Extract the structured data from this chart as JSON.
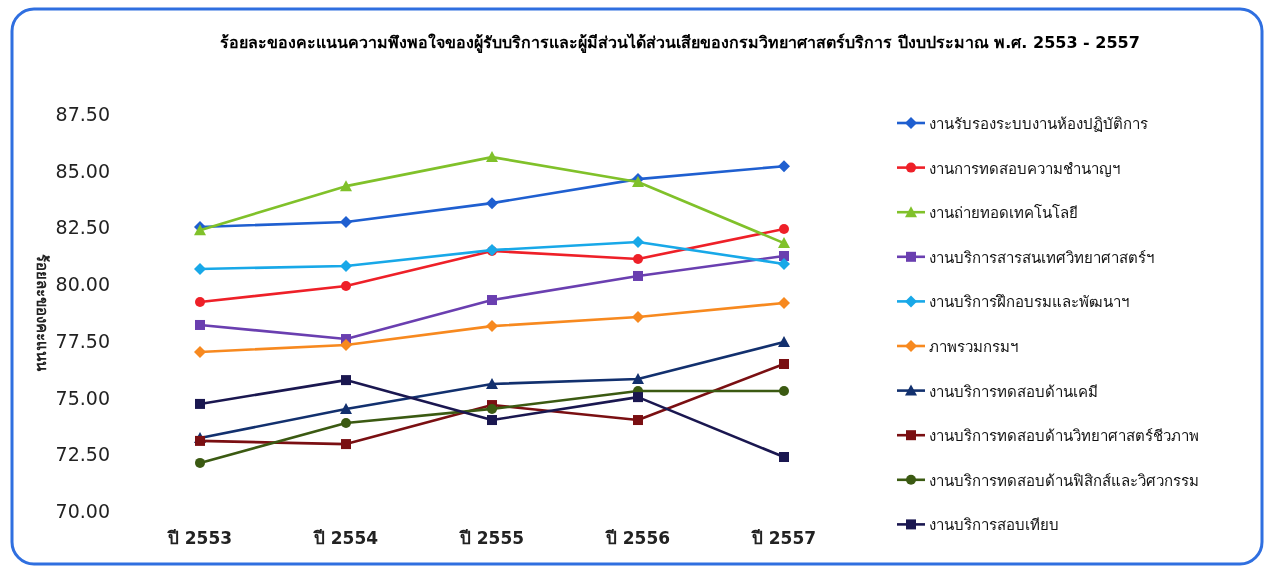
{
  "chart_data": {
    "type": "line",
    "title": "ร้อยละของคะแนนความพึงพอใจของผู้รับบริการและผู้มีส่วนได้ส่วนเสียของกรมวิทยาศาสตร์บริการ ปีงบประมาณ พ.ศ. 2553 - 2557",
    "ylabel": "ร้อยละของคะแนน",
    "categories": [
      "ปี 2553",
      "ปี 2554",
      "ปี 2555",
      "ปี 2556",
      "ปี 2557"
    ],
    "ylim": [
      70,
      87.5
    ],
    "yticks": [
      {
        "value": 70,
        "label": "70.00"
      },
      {
        "value": 72.5,
        "label": "72.50"
      },
      {
        "value": 75,
        "label": "75.00"
      },
      {
        "value": 77.5,
        "label": "77.50"
      },
      {
        "value": 80,
        "label": "80.00"
      },
      {
        "value": 82.5,
        "label": "82.50"
      },
      {
        "value": 85,
        "label": "85.00"
      },
      {
        "value": 87.5,
        "label": "87.50"
      }
    ],
    "grid": false,
    "legend": "right",
    "line_style": "solid",
    "series": [
      {
        "name": "งานรับรองระบบงานห้องปฏิบัติการ",
        "color": "#1f5fd0",
        "marker": "diamond",
        "values": [
          82.52,
          82.74,
          83.57,
          84.63,
          85.2
        ]
      },
      {
        "name": "งานการทดสอบความชำนาญฯ",
        "color": "#ee2028",
        "marker": "circle",
        "values": [
          79.21,
          79.92,
          81.46,
          81.11,
          82.43
        ]
      },
      {
        "name": "งานถ่ายทอดเทคโนโลยี",
        "color": "#80c12a",
        "marker": "triangle",
        "values": [
          82.38,
          84.32,
          85.6,
          84.5,
          81.81
        ]
      },
      {
        "name": "งานบริการสารสนเทศวิทยาศาสตร์ฯ",
        "color": "#6a3fb0",
        "marker": "square",
        "values": [
          78.2,
          77.58,
          79.3,
          80.36,
          81.24
        ]
      },
      {
        "name": "งานบริการฝึกอบรมและพัฒนาฯ",
        "color": "#18a8e8",
        "marker": "diamond",
        "values": [
          80.67,
          80.8,
          81.5,
          81.86,
          80.89
        ]
      },
      {
        "name": "ภาพรวมกรมฯ",
        "color": "#f7891f",
        "marker": "diamond",
        "values": [
          77.01,
          77.32,
          78.15,
          78.55,
          79.17
        ]
      },
      {
        "name": "งานบริการทดสอบด้านเคมี",
        "color": "#12306e",
        "marker": "triangle",
        "values": [
          73.22,
          74.5,
          75.6,
          75.82,
          77.45
        ]
      },
      {
        "name": "งานบริการทดสอบด้านวิทยาศาสตร์ชีวภาพ",
        "color": "#7a0f12",
        "marker": "square",
        "values": [
          73.09,
          72.95,
          74.67,
          74.01,
          76.48
        ]
      },
      {
        "name": "งานบริการทดสอบด้านฟิสิกส์และวิศวกรรม",
        "color": "#3b5a12",
        "marker": "circle",
        "values": [
          72.12,
          73.88,
          74.5,
          75.29,
          75.29
        ]
      },
      {
        "name": "งานบริการสอบเทียบ",
        "color": "#1a1750",
        "marker": "square",
        "values": [
          74.72,
          75.77,
          74.01,
          75.02,
          72.38
        ]
      }
    ]
  }
}
